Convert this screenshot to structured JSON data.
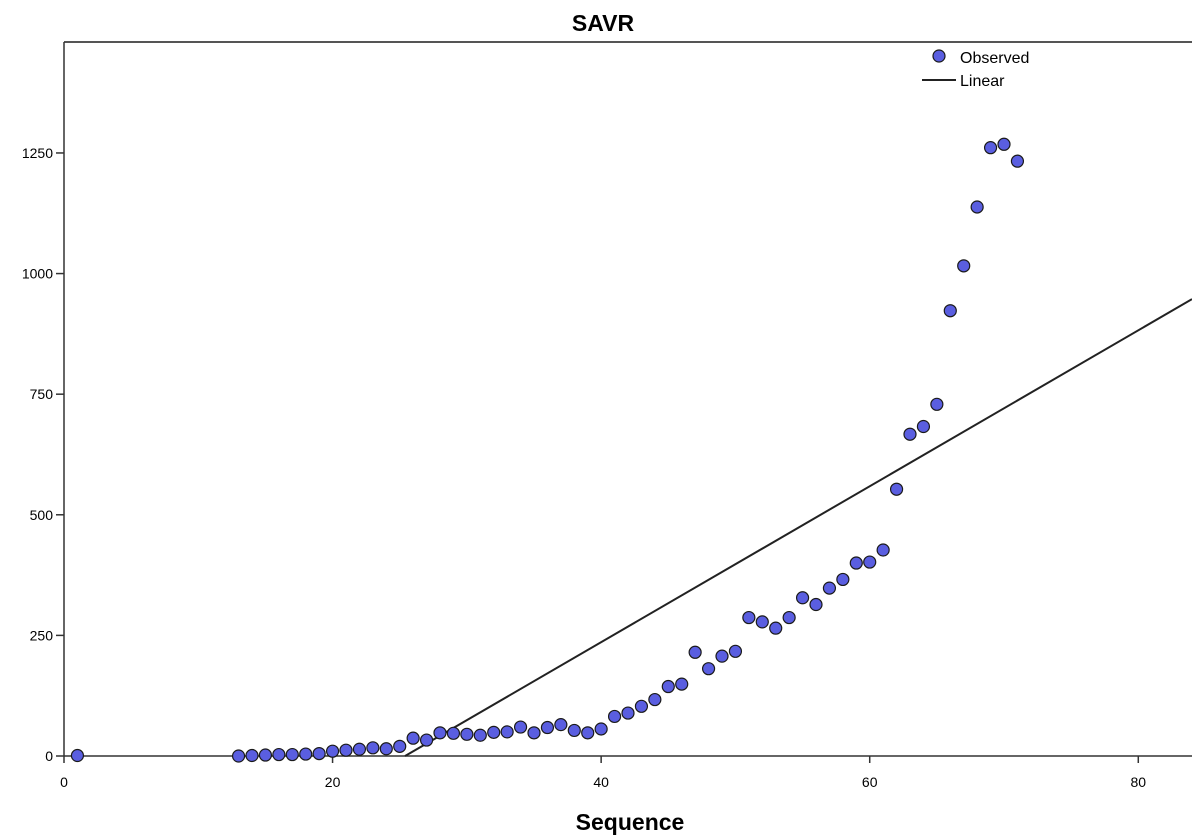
{
  "chart_data": {
    "type": "scatter",
    "title": "SAVR",
    "xlabel": "Sequence",
    "ylabel": "",
    "xlim": [
      0,
      84
    ],
    "ylim": [
      0,
      1480
    ],
    "xticks": [
      0,
      20,
      40,
      60,
      80
    ],
    "yticks": [
      0,
      250,
      500,
      750,
      1000,
      1250
    ],
    "legend_position": "top-right",
    "grid": false,
    "colors": {
      "points": "#5a5ee0",
      "point_edge": "#1a1a1a",
      "line": "#222222"
    },
    "series": [
      {
        "name": "Observed",
        "kind": "scatter",
        "x": [
          1,
          13,
          14,
          15,
          16,
          17,
          18,
          19,
          20,
          21,
          22,
          23,
          24,
          25,
          26,
          27,
          28,
          29,
          30,
          31,
          32,
          33,
          34,
          35,
          36,
          37,
          38,
          39,
          40,
          41,
          42,
          43,
          44,
          45,
          46,
          47,
          48,
          49,
          50,
          51,
          52,
          53,
          54,
          55,
          56,
          57,
          58,
          59,
          60,
          61,
          62,
          63,
          64,
          65,
          66,
          67,
          68,
          69,
          70,
          71
        ],
        "y": [
          1,
          0,
          1,
          2,
          3,
          3,
          4,
          5,
          10,
          12,
          14,
          17,
          15,
          20,
          37,
          33,
          48,
          47,
          45,
          43,
          49,
          50,
          60,
          48,
          59,
          65,
          53,
          48,
          56,
          82,
          89,
          103,
          117,
          144,
          149,
          215,
          181,
          207,
          217,
          287,
          278,
          265,
          287,
          328,
          314,
          348,
          366,
          400,
          402,
          427,
          553,
          667,
          683,
          729,
          923,
          1016,
          1138,
          1261,
          1268,
          1233
        ]
      },
      {
        "name": "Linear",
        "kind": "line",
        "x": [
          25.4,
          84
        ],
        "y": [
          0,
          947
        ]
      }
    ]
  }
}
